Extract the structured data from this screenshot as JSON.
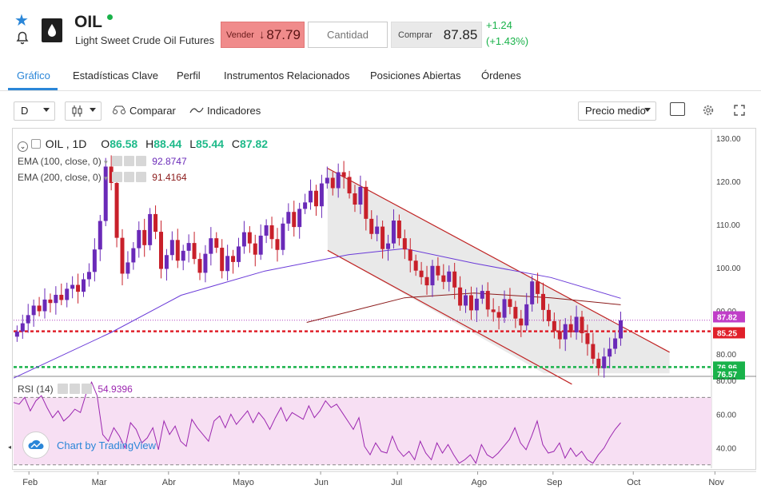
{
  "header": {
    "ticker": "OIL",
    "subtitle": "Light Sweet Crude Oil Futures",
    "sell_label": "Vender",
    "sell_arrow": "↓",
    "sell_price": "87.79",
    "quantity_placeholder": "Cantidad",
    "buy_label": "Comprar",
    "buy_price": "87.85",
    "change_abs": "+1.24",
    "change_pct": "(+1.43%)",
    "icons": [
      "star-icon",
      "bell-icon",
      "oil-drop-logo-icon",
      "live-dot-icon"
    ],
    "colors": {
      "sell": "#f08b8b",
      "up": "#19b24a",
      "accent": "#2a86d8"
    }
  },
  "tabs": [
    {
      "label": "Gráfico",
      "active": true
    },
    {
      "label": "Estadísticas Clave"
    },
    {
      "label": "Perfil"
    },
    {
      "label": "Instrumentos Relacionados"
    },
    {
      "label": "Posiciones Abiertas"
    },
    {
      "label": "Órdenes"
    }
  ],
  "toolbar": {
    "interval": "D",
    "chart_type_icon": "candles-icon",
    "compare": "Comparar",
    "indicators": "Indicadores",
    "price_mode": "Precio medio",
    "icons": [
      "compare-icon",
      "indicators-icon",
      "square-icon",
      "gear-icon",
      "fullscreen-icon"
    ]
  },
  "legend": {
    "symbol": "OIL , 1D",
    "o_label": "O",
    "o": "86.58",
    "h_label": "H",
    "h": "88.44",
    "l_label": "L",
    "l": "85.44",
    "c_label": "C",
    "c": "87.82",
    "ema100_label": "EMA (100, close, 0)",
    "ema100": "92.8747",
    "ema200_label": "EMA (200, close, 0)",
    "ema200": "91.4164",
    "rsi_label": "RSI (14)",
    "rsi": "54.9396"
  },
  "watermark": "Chart by TradingView",
  "chart_data": [
    {
      "type": "candlestick",
      "x_ticks": [
        "Feb",
        "Mar",
        "Abr",
        "Mayo",
        "Jun",
        "Jul",
        "Ago",
        "Sep",
        "Oct",
        "Nov"
      ],
      "y_ticks": [
        80.0,
        90.0,
        100.0,
        110.0,
        120.0,
        130.0
      ],
      "ylim": [
        75,
        132
      ],
      "price_tags": {
        "last": "87.82",
        "red": "85.25",
        "green": "76.96",
        "green2": "76.57"
      },
      "horizontal_lines": [
        {
          "value": 85.25,
          "color": "#e0202a",
          "style": "dashed"
        },
        {
          "value": 76.96,
          "color": "#19b24a",
          "style": "dashed"
        },
        {
          "value": 87.82,
          "color": "#b040c0",
          "style": "dotted"
        }
      ],
      "close_series": [
        85.2,
        87.1,
        89.0,
        91.2,
        89.9,
        92.6,
        91.8,
        93.7,
        92.5,
        95.1,
        96.0,
        94.4,
        97.3,
        99.0,
        104.2,
        110.8,
        123.4,
        119.6,
        106.9,
        98.6,
        101.2,
        104.5,
        108.7,
        105.2,
        112.4,
        108.3,
        99.7,
        102.9,
        106.4,
        101.6,
        103.9,
        105.7,
        102.0,
        98.8,
        103.2,
        106.8,
        104.6,
        99.2,
        102.7,
        101.3,
        104.9,
        108.2,
        105.6,
        103.0,
        107.4,
        109.8,
        106.6,
        104.1,
        110.2,
        112.9,
        109.4,
        113.6,
        115.1,
        117.8,
        114.2,
        119.5,
        120.8,
        118.4,
        122.1,
        121.0,
        117.2,
        114.6,
        118.7,
        111.3,
        107.8,
        109.5,
        104.3,
        105.6,
        110.9,
        106.8,
        104.2,
        101.6,
        99.3,
        97.8,
        95.9,
        100.4,
        98.2,
        96.7,
        99.1,
        95.4,
        91.2,
        93.6,
        90.1,
        92.8,
        94.6,
        90.3,
        89.7,
        88.4,
        92.7,
        90.9,
        88.2,
        86.6,
        91.5,
        96.8,
        93.9,
        90.2,
        87.6,
        85.3,
        83.4,
        86.9,
        85.0,
        88.6,
        84.8,
        82.3,
        78.9,
        76.7,
        79.4,
        81.2,
        83.6,
        87.8
      ],
      "ema100": [
        {
          "x": 0.0,
          "y": 74.4
        },
        {
          "x": 0.14,
          "y": 85.0
        },
        {
          "x": 0.24,
          "y": 93.6
        },
        {
          "x": 0.36,
          "y": 99.2
        },
        {
          "x": 0.48,
          "y": 103.0
        },
        {
          "x": 0.56,
          "y": 104.4
        },
        {
          "x": 0.66,
          "y": 101.0
        },
        {
          "x": 0.77,
          "y": 97.7
        },
        {
          "x": 0.87,
          "y": 92.9
        }
      ],
      "ema200": [
        {
          "x": 0.42,
          "y": 87.3
        },
        {
          "x": 0.56,
          "y": 93.0
        },
        {
          "x": 0.66,
          "y": 94.1
        },
        {
          "x": 0.77,
          "y": 93.0
        },
        {
          "x": 0.87,
          "y": 91.4
        }
      ],
      "channel": {
        "upper": [
          [
            0.45,
            123.0
          ],
          [
            0.94,
            80.4
          ]
        ],
        "lower": [
          [
            0.45,
            104.0
          ],
          [
            0.8,
            73.0
          ]
        ],
        "fill": "#e9e9e9"
      }
    },
    {
      "type": "line",
      "title": "RSI (14)",
      "y_ticks": [
        40.0,
        60.0,
        80.0
      ],
      "ylim": [
        28,
        82
      ],
      "bands": [
        30,
        70
      ],
      "last": 54.9396,
      "values": [
        67,
        66,
        70,
        62,
        68,
        71,
        64,
        58,
        62,
        56,
        59,
        63,
        61,
        72,
        79,
        71,
        48,
        44,
        52,
        47,
        40,
        55,
        51,
        43,
        46,
        52,
        39,
        56,
        48,
        53,
        44,
        41,
        57,
        52,
        48,
        44,
        56,
        59,
        52,
        60,
        54,
        58,
        62,
        55,
        61,
        57,
        51,
        58,
        64,
        56,
        61,
        59,
        57,
        65,
        58,
        62,
        68,
        64,
        66,
        61,
        56,
        51,
        58,
        41,
        36,
        43,
        38,
        37,
        47,
        39,
        35,
        38,
        33,
        44,
        37,
        33,
        43,
        37,
        42,
        36,
        31,
        33,
        36,
        31,
        42,
        36,
        34,
        37,
        41,
        45,
        52,
        43,
        39,
        47,
        56,
        42,
        37,
        38,
        43,
        34,
        40,
        35,
        38,
        33,
        31,
        36,
        40,
        46,
        51,
        55
      ]
    }
  ]
}
